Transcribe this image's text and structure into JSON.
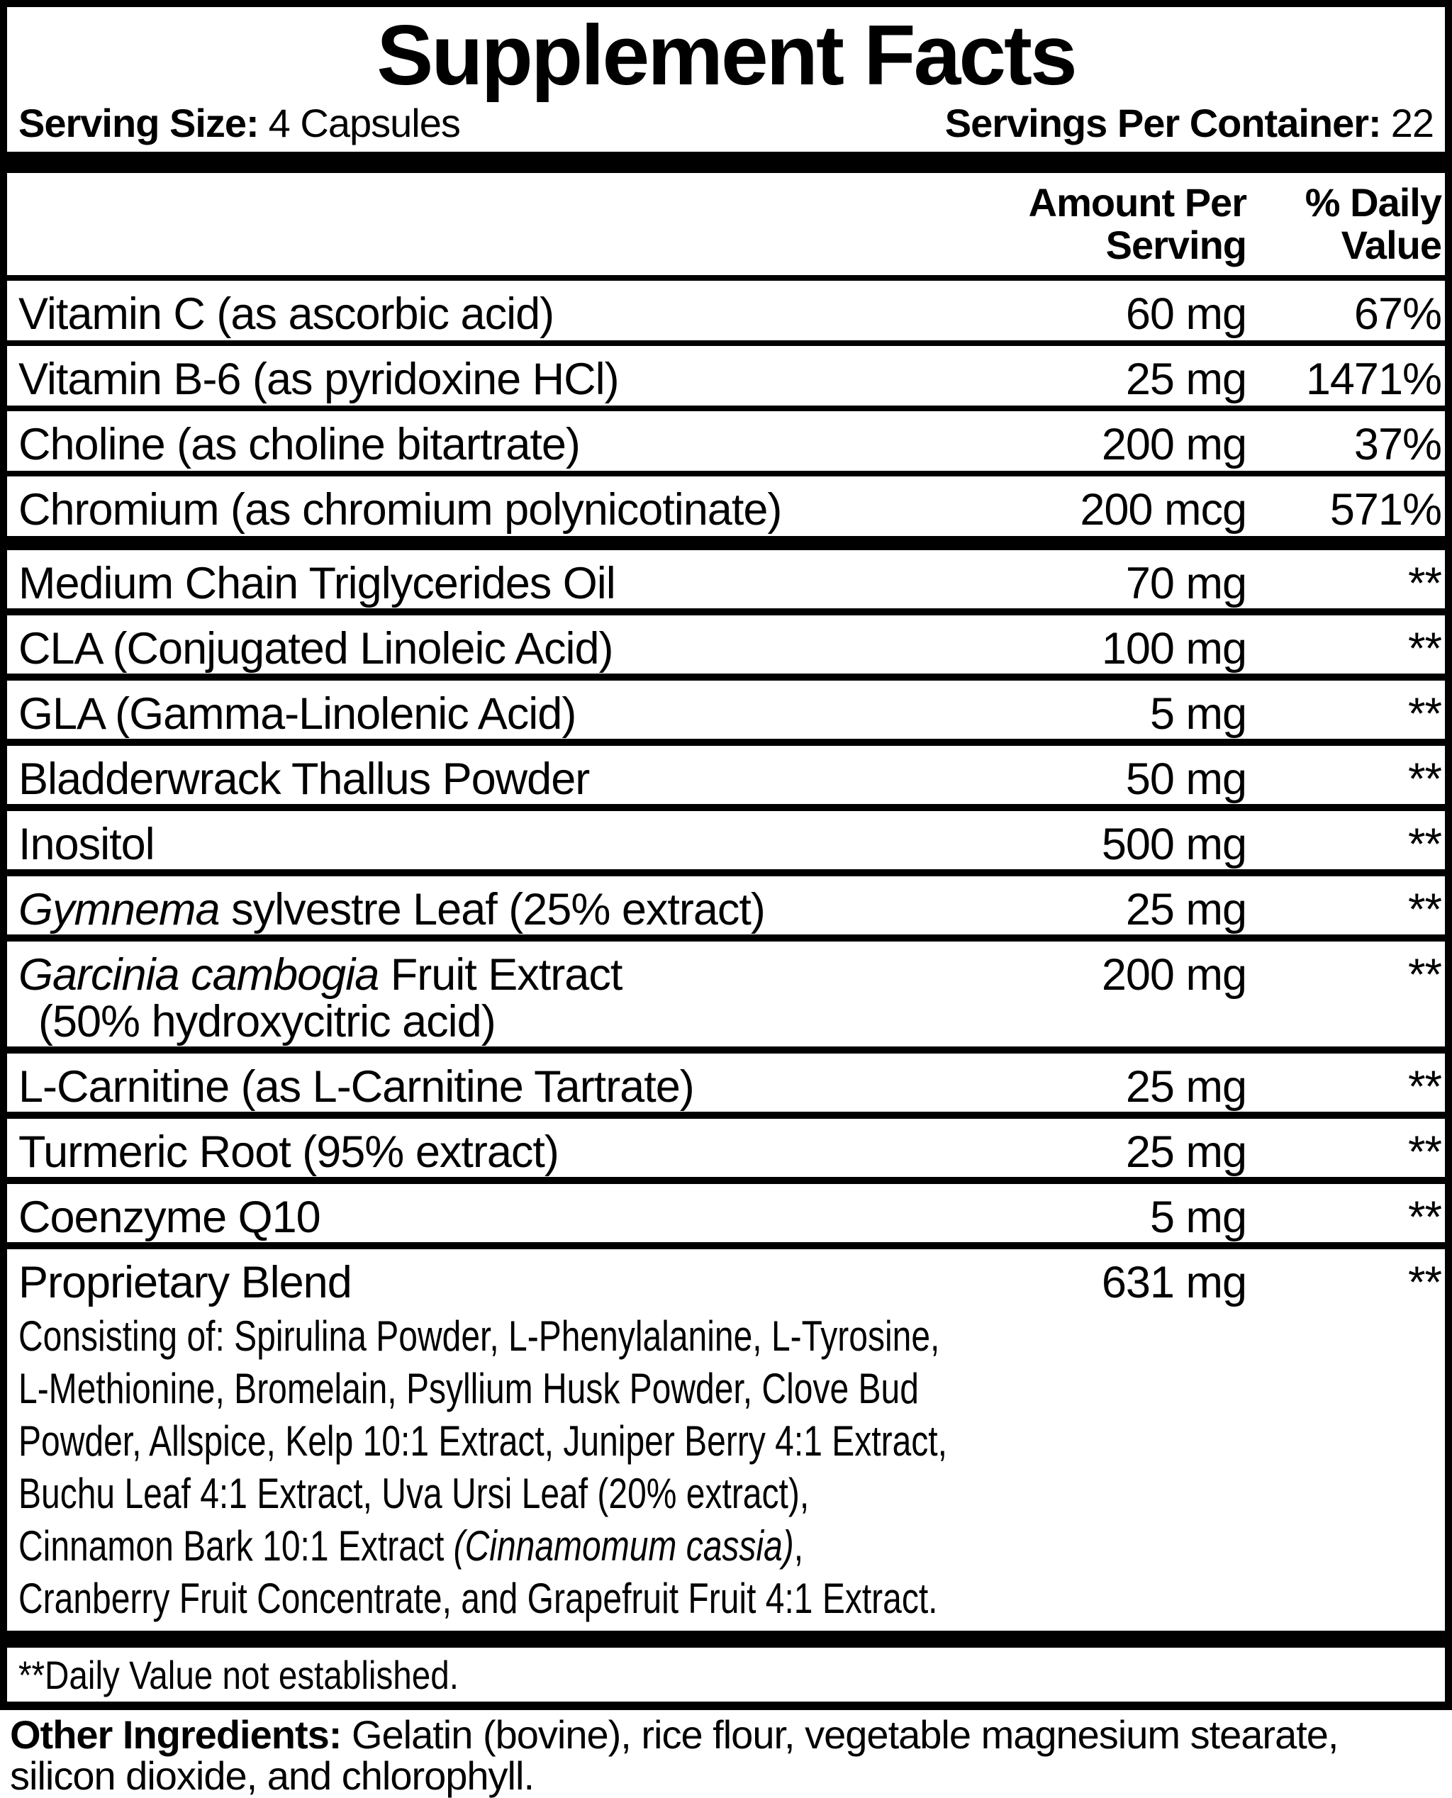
{
  "colors": {
    "ink": "#000000",
    "paper": "#ffffff"
  },
  "title": "Supplement Facts",
  "serving_info": {
    "serving_size_label": "Serving Size:",
    "serving_size_value": "4 Capsules",
    "servings_per_container_label": "Servings Per Container:",
    "servings_per_container_value": "22"
  },
  "column_headers": {
    "amount_line1": "Amount Per",
    "amount_line2": "Serving",
    "daily_value_line1": "% Daily",
    "daily_value_line2": "Value"
  },
  "table": {
    "rows": [
      {
        "name": [
          {
            "text": "Vitamin C (as ascorbic acid)"
          }
        ],
        "amount": "60 mg",
        "daily_value": "67%",
        "sep": "thin"
      },
      {
        "name": [
          {
            "text": "Vitamin B-6 (as pyridoxine HCl)"
          }
        ],
        "amount": "25 mg",
        "daily_value": "1471%",
        "sep": "thin"
      },
      {
        "name": [
          {
            "text": "Choline (as choline bitartrate)"
          }
        ],
        "amount": "200 mg",
        "daily_value": "37%",
        "sep": "thin"
      },
      {
        "name": [
          {
            "text": "Chromium (as chromium polynicotinate)"
          }
        ],
        "amount": "200 mcg",
        "daily_value": "571%",
        "sep": "mid"
      },
      {
        "name": [
          {
            "text": "Medium Chain Triglycerides Oil"
          }
        ],
        "amount": "70 mg",
        "daily_value": "**",
        "sep": "thin2"
      },
      {
        "name": [
          {
            "text": "CLA (Conjugated Linoleic Acid)"
          }
        ],
        "amount": "100 mg",
        "daily_value": "**",
        "sep": "thin2"
      },
      {
        "name": [
          {
            "text": "GLA (Gamma-Linolenic Acid)"
          }
        ],
        "amount": "5 mg",
        "daily_value": "**",
        "sep": "thin2"
      },
      {
        "name": [
          {
            "text": "Bladderwrack Thallus Powder"
          }
        ],
        "amount": "50 mg",
        "daily_value": "**",
        "sep": "thin2"
      },
      {
        "name": [
          {
            "text": "Inositol"
          }
        ],
        "amount": "500 mg",
        "daily_value": "**",
        "sep": "thin2"
      },
      {
        "name": [
          {
            "text": "Gymnema",
            "italic": true
          },
          {
            "text": " sylvestre Leaf (25% extract)"
          }
        ],
        "amount": "25 mg",
        "daily_value": "**",
        "sep": "thin2"
      },
      {
        "name": [
          {
            "text": "Garcinia cambogia",
            "italic": true
          },
          {
            "text": " Fruit Extract"
          }
        ],
        "line2": "(50% hydroxycitric acid)",
        "amount": "200 mg",
        "daily_value": "**",
        "sep": "thin2"
      },
      {
        "name": [
          {
            "text": "L-Carnitine (as L-Carnitine Tartrate)"
          }
        ],
        "amount": "25 mg",
        "daily_value": "**",
        "sep": "thin2"
      },
      {
        "name": [
          {
            "text": "Turmeric Root (95% extract)"
          }
        ],
        "amount": "25 mg",
        "daily_value": "**",
        "sep": "thin2"
      },
      {
        "name": [
          {
            "text": "Coenzyme Q10"
          }
        ],
        "amount": "5 mg",
        "daily_value": "**",
        "sep": "thin2"
      },
      {
        "name": [
          {
            "text": "Proprietary Blend"
          }
        ],
        "amount": "631 mg",
        "daily_value": "**",
        "sep": "none",
        "description_lines": [
          [
            {
              "text": "Consisting of: Spirulina Powder, L-Phenylalanine, L-Tyrosine,"
            }
          ],
          [
            {
              "text": "L-Methionine, Bromelain, Psyllium Husk Powder, Clove Bud"
            }
          ],
          [
            {
              "text": "Powder, Allspice, Kelp 10:1 Extract, Juniper Berry 4:1 Extract,"
            }
          ],
          [
            {
              "text": "Buchu Leaf 4:1 Extract, Uva Ursi Leaf (20% extract),"
            }
          ],
          [
            {
              "text": "Cinnamon Bark 10:1 Extract "
            },
            {
              "text": "(Cinnamomum cassia)",
              "italic": true
            },
            {
              "text": ","
            }
          ],
          [
            {
              "text": "Cranberry Fruit Concentrate, and Grapefruit Fruit 4:1 Extract."
            }
          ]
        ]
      }
    ]
  },
  "footnote": "**Daily Value not established.",
  "other_ingredients": {
    "label": "Other Ingredients:",
    "text": "Gelatin (bovine), rice flour, vegetable magnesium stearate, silicon dioxide, and chlorophyll."
  }
}
